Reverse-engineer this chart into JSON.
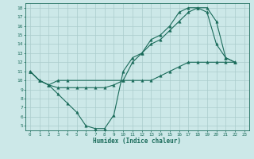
{
  "xlabel": "Humidex (Indice chaleur)",
  "background_color": "#cce8e8",
  "line_color": "#1a6b5a",
  "grid_color": "#aacccc",
  "xlim": [
    -0.5,
    23.5
  ],
  "ylim": [
    4.5,
    18.5
  ],
  "xticks": [
    0,
    1,
    2,
    3,
    4,
    5,
    6,
    7,
    8,
    9,
    10,
    11,
    12,
    13,
    14,
    15,
    16,
    17,
    18,
    19,
    20,
    21,
    22,
    23
  ],
  "yticks": [
    5,
    6,
    7,
    8,
    9,
    10,
    11,
    12,
    13,
    14,
    15,
    16,
    17,
    18
  ],
  "line1_x": [
    0,
    1,
    2,
    3,
    4,
    5,
    6,
    7,
    8,
    9,
    10,
    11,
    12,
    13,
    14,
    15,
    16,
    17,
    18,
    19,
    20,
    21,
    22
  ],
  "line1_y": [
    11,
    10,
    9.5,
    8.5,
    7.5,
    6.5,
    5.0,
    4.7,
    4.7,
    6.2,
    11,
    12.5,
    13,
    14.5,
    15,
    16,
    17.5,
    18,
    18,
    17.5,
    14,
    12.5,
    12
  ],
  "line2_x": [
    0,
    1,
    2,
    3,
    4,
    10,
    11,
    12,
    13,
    14,
    15,
    16,
    17,
    18,
    19,
    20,
    21,
    22
  ],
  "line2_y": [
    11,
    10,
    9.5,
    10,
    10,
    10,
    12,
    13,
    14,
    14.5,
    15.5,
    16.5,
    17.5,
    18,
    18,
    16.5,
    12.5,
    12
  ],
  "line3_x": [
    0,
    1,
    2,
    3,
    4,
    5,
    6,
    7,
    8,
    9,
    10,
    11,
    12,
    13,
    14,
    15,
    16,
    17,
    18,
    19,
    20,
    21,
    22
  ],
  "line3_y": [
    11,
    10,
    9.5,
    9.2,
    9.2,
    9.2,
    9.2,
    9.2,
    9.2,
    9.5,
    10,
    10,
    10,
    10,
    10.5,
    11,
    11.5,
    12,
    12,
    12,
    12,
    12,
    12
  ]
}
